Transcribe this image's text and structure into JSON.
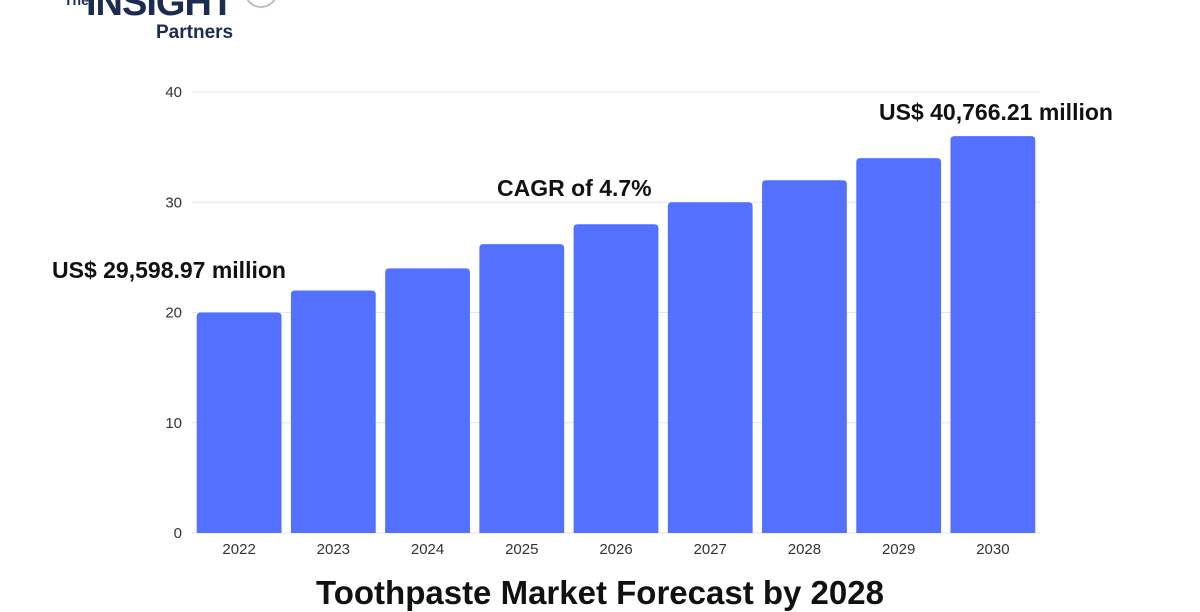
{
  "logo": {
    "the": "The",
    "insight": "INSIGHT",
    "partners": "Partners"
  },
  "chart_data": {
    "type": "bar",
    "title": "Toothpaste Market Forecast by 2028",
    "categories": [
      "2022",
      "2023",
      "2024",
      "2025",
      "2026",
      "2027",
      "2028",
      "2029",
      "2030"
    ],
    "values": [
      20,
      22,
      24,
      26.2,
      28,
      30,
      32,
      34,
      36
    ],
    "ylim": [
      0,
      40
    ],
    "yticks": [
      0,
      10,
      20,
      30,
      40
    ],
    "grid": true,
    "bar_color": "#5470ff",
    "annotations": {
      "start": "US$ 29,598.97 million",
      "cagr": "CAGR of 4.7%",
      "end": "US$ 40,766.21 million"
    }
  }
}
